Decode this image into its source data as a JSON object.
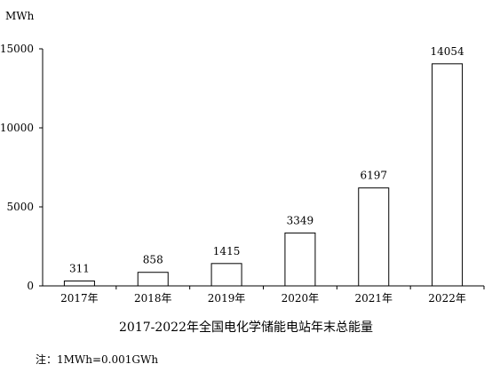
{
  "chart_data": {
    "type": "bar",
    "title": "2017-2022年全国电化学储能电站年末总能量",
    "ylabel": "MWh",
    "xlabel": "",
    "categories": [
      "2017年",
      "2018年",
      "2019年",
      "2020年",
      "2021年",
      "2022年"
    ],
    "values": [
      311,
      858,
      1415,
      3349,
      6197,
      14054
    ],
    "data_labels": [
      "311",
      "858",
      "1415",
      "3349",
      "6197",
      "14054"
    ],
    "ylim": [
      0,
      15000
    ],
    "yticks": [
      0,
      5000,
      10000,
      15000
    ],
    "ytick_labels": [
      "0",
      "5000",
      "10000",
      "15000"
    ],
    "grid": false,
    "legend": "none",
    "bar_fill": "#ffffff",
    "bar_stroke": "#000000",
    "note": "注：1MWh=0.001GWh"
  }
}
